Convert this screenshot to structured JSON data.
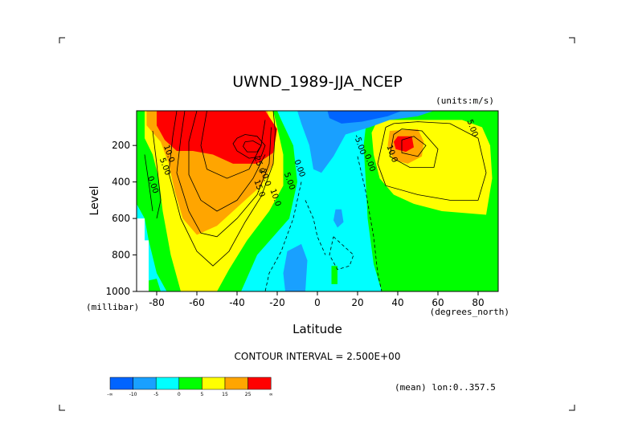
{
  "chart_data": {
    "type": "heatmap",
    "title": "UWND_1989-JJA_NCEP",
    "units_label": "(units:m/s)",
    "xlabel": "Latitude",
    "x_units_label": "(degrees_north)",
    "ylabel": "Level",
    "y_units_label": "(millibar)",
    "xlim": [
      -90,
      90
    ],
    "ylim": [
      1000,
      10
    ],
    "x_ticks": [
      -80,
      -60,
      -40,
      -20,
      0,
      20,
      40,
      60,
      80
    ],
    "y_ticks": [
      200,
      400,
      600,
      800,
      1000
    ],
    "contour_interval_text": "CONTOUR INTERVAL = 2.500E+00",
    "footnote": "(mean) lon:0..357.5",
    "contour_labels": [
      {
        "text": "10.0",
        "lat": -75,
        "lev": 250
      },
      {
        "text": "5.00",
        "lat": -77,
        "lev": 320
      },
      {
        "text": "0.00",
        "lat": -83,
        "lev": 420
      },
      {
        "text": "25.0",
        "lat": -30,
        "lev": 310
      },
      {
        "text": "20.0",
        "lat": -27,
        "lev": 380
      },
      {
        "text": "15.0",
        "lat": -30,
        "lev": 440
      },
      {
        "text": "10.0",
        "lat": -22,
        "lev": 490
      },
      {
        "text": "5.00",
        "lat": -15,
        "lev": 400
      },
      {
        "text": "0.00",
        "lat": -10,
        "lev": 330
      },
      {
        "text": "-5.00",
        "lat": 20,
        "lev": 200
      },
      {
        "text": "0.00",
        "lat": 25,
        "lev": 300
      },
      {
        "text": "10.0",
        "lat": 36,
        "lev": 250
      },
      {
        "text": "5.00",
        "lat": 76,
        "lev": 110
      }
    ],
    "colorbar": {
      "colors": [
        "#0064ff",
        "#19a0ff",
        "#00ffff",
        "#00ff00",
        "#ffff00",
        "#ffa500",
        "#ff0000"
      ],
      "labels": [
        "-∞",
        "-10",
        "-5",
        "0",
        "5",
        "15",
        "25",
        "∞"
      ]
    }
  }
}
